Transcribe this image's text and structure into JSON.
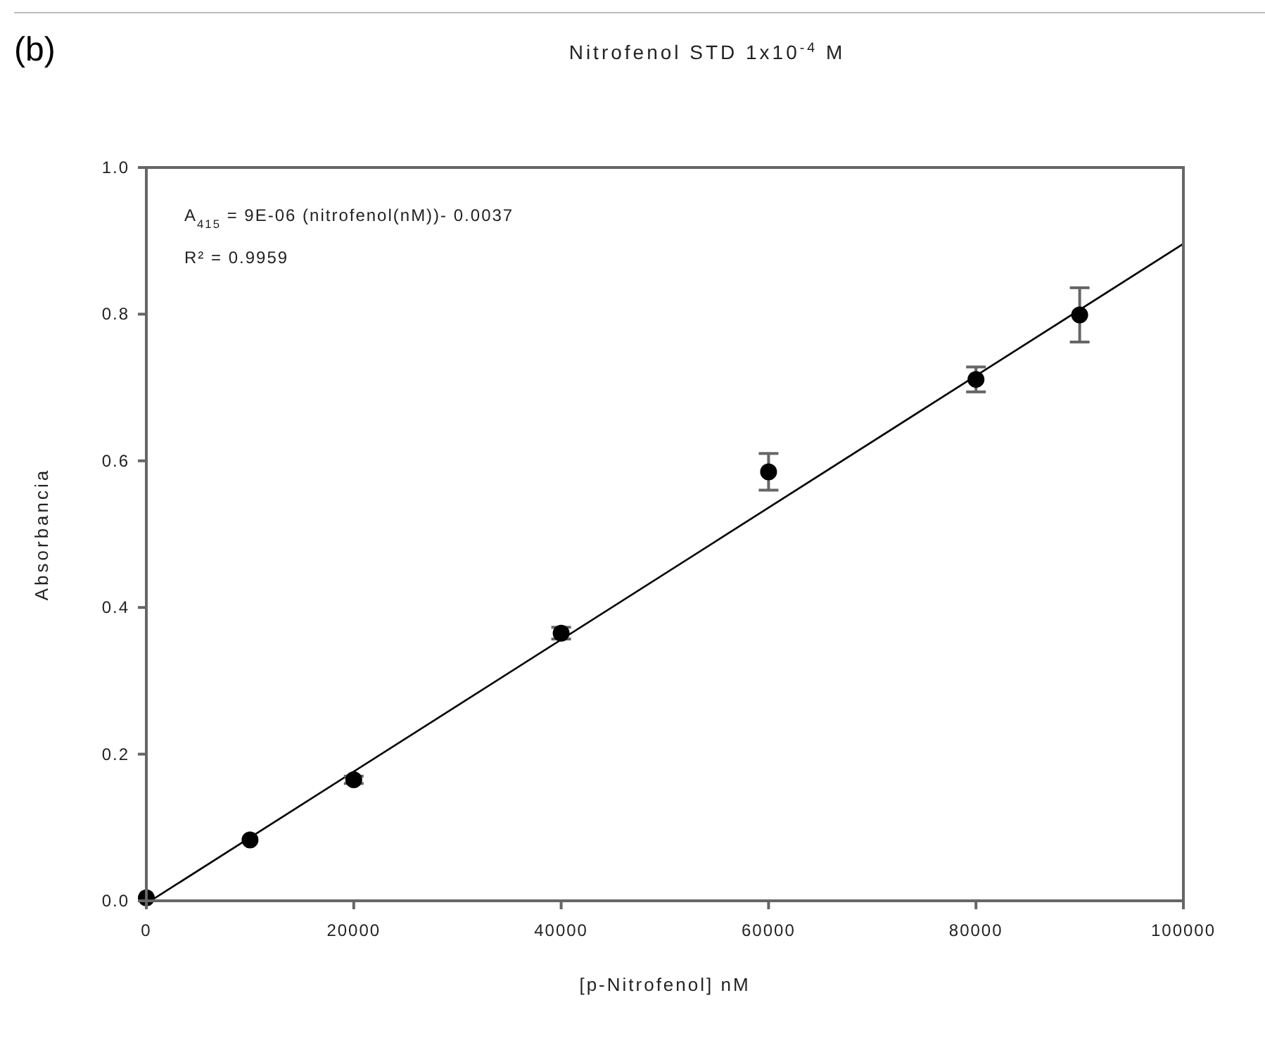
{
  "chart_data": {
    "type": "scatter",
    "title": "Nitrofenol STD 1x10$^{-4}$ M",
    "xlabel": "[p-Nitrofenol] nM",
    "ylabel": "Absorbancia",
    "annotations": [
      "(b)",
      "A$_{415}$ = 9E-06 (nitrofenol(nM))- 0.0037",
      "R² = 0.9959"
    ],
    "xlim": [
      0,
      100000
    ],
    "xticks": [
      0,
      20000,
      40000,
      60000,
      80000,
      100000
    ],
    "ylim": [
      0,
      1
    ],
    "yticks": [
      {
        "value": 0,
        "label": "0.0"
      },
      0.2,
      0.4,
      0.6,
      0.8,
      {
        "value": 1,
        "label": "1.0"
      }
    ],
    "grid": false,
    "series": [
      {
        "type": "scatter",
        "marker": "circle",
        "color": "#000000",
        "x": [
          0,
          10000,
          20000,
          40000,
          60000,
          80000,
          90000
        ],
        "values": [
          0.004,
          0.083,
          0.165,
          0.365,
          0.585,
          0.711,
          0.799
        ],
        "errors": [
          null,
          null,
          0.005,
          0.008,
          0.025,
          0.017,
          0.037
        ]
      },
      {
        "type": "line",
        "color": "#000000",
        "x": [
          411,
          100000
        ],
        "values": [
          0,
          0.896
        ],
        "line_style": "solid",
        "marker": "none"
      }
    ]
  }
}
